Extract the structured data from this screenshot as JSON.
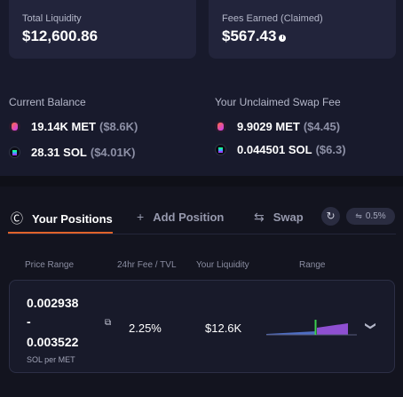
{
  "summary": {
    "total_liquidity": {
      "label": "Total Liquidity",
      "value": "$12,600.86"
    },
    "fees_earned": {
      "label": "Fees Earned (Claimed)",
      "value": "$567.43"
    }
  },
  "current_balance": {
    "title": "Current Balance",
    "tokens": [
      {
        "amount": "19.14K MET",
        "usd": "($8.6K)",
        "icon": "met-token-icon"
      },
      {
        "amount": "28.31 SOL",
        "usd": "($4.01K)",
        "icon": "sol-token-icon"
      }
    ]
  },
  "unclaimed_fee": {
    "title": "Your Unclaimed Swap Fee",
    "tokens": [
      {
        "amount": "9.9029 MET",
        "usd": "($4.45)",
        "icon": "met-token-icon"
      },
      {
        "amount": "0.044501 SOL",
        "usd": "($6.3)",
        "icon": "sol-token-icon"
      }
    ]
  },
  "tabs": [
    {
      "label": "Your Positions",
      "icon": "dollar-circle-icon",
      "active": true
    },
    {
      "label": "Add Position",
      "icon": "plus-icon",
      "active": false
    },
    {
      "label": "Swap",
      "icon": "swap-arrows-icon",
      "active": false
    }
  ],
  "slippage": {
    "value": "0.5%",
    "icon": "sliders-icon"
  },
  "table": {
    "headers": [
      "Price Range",
      "24hr Fee / TVL",
      "Your Liquidity",
      "Range"
    ],
    "positions": [
      {
        "price_low": "0.002938",
        "separator": "-",
        "price_high": "0.003522",
        "unit": "SOL per MET",
        "fee_tvl": "2.25%",
        "liquidity": "$12.6K"
      }
    ]
  },
  "colors": {
    "accent": "#e0632a",
    "in_range_marker": "#3ccf4e",
    "range_fill": "#8e4fd1",
    "range_out": "#4f6ec4"
  }
}
